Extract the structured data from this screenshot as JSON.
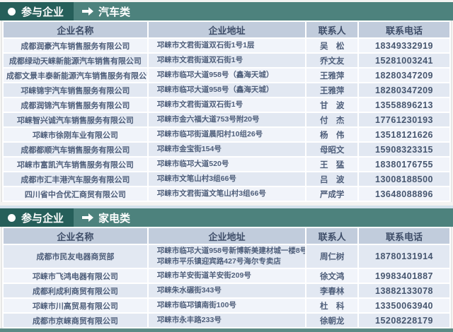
{
  "page": {
    "accent_dark_teal": "#265f5a",
    "accent_teal": "#4d827d",
    "header_row_bg": "#c1ccdc",
    "row_light": "#f1f4fa",
    "row_dark": "#e2e8f2",
    "text_color": "#4e5e7a",
    "icons": {
      "bullet": "circle-bullet-icon",
      "arrow": "right-arrow-icon"
    }
  },
  "sections": [
    {
      "badge_label": "参与企业",
      "category_label": "汽车类",
      "columns": [
        "企业名称",
        "企业地址",
        "联系人",
        "联系电话"
      ],
      "rows": [
        {
          "name": "成都润豪汽车销售服务有限公司",
          "address": "邛崃市文君街道双石街1号1层",
          "contact": "吴　松",
          "phone": "18349332919"
        },
        {
          "name": "成都绿动天崃新能源汽车销售有限公司",
          "address": "邛崃市文君街道双石街1号",
          "contact": "乔文友",
          "phone": "15281003241"
        },
        {
          "name": "成都文景丰泰新能源汽车销售服务有限公司",
          "address": "邛崃市临邛大道958号（鑫海天城）",
          "contact": "王雅萍",
          "phone": "18280347209"
        },
        {
          "name": "邛崃锦宇汽车销售服务有限公司",
          "address": "邛崃市临邛大道958号（鑫海天城）",
          "contact": "王雅萍",
          "phone": "18280347209"
        },
        {
          "name": "成都润锦汽车销售服务有限公司",
          "address": "邛崃市文君街道双石街1号",
          "contact": "甘　波",
          "phone": "13558896213"
        },
        {
          "name": "邛崃智兴诚汽车销售服务有限公司",
          "address": "邛崃市金六福大道753号附20号",
          "contact": "付　杰",
          "phone": "17761230193"
        },
        {
          "name": "邛崃市徐刚车业有限公司",
          "address": "邛崃市临邛街道晨阳村10组26号",
          "contact": "杨　伟",
          "phone": "13518121626"
        },
        {
          "name": "成都都顺汽车销售服务有限公司",
          "address": "邛崃市金宝街154号",
          "contact": "母昭文",
          "phone": "15908323315"
        },
        {
          "name": "邛崃市富凯汽车销售服务有限公司",
          "address": "邛崃市临邛大道520号",
          "contact": "王　猛",
          "phone": "18380176755"
        },
        {
          "name": "成都市汇丰港汽车服务有限公司",
          "address": "邛崃市文笔山村3组66号",
          "contact": "吕　波",
          "phone": "13008188500"
        },
        {
          "name": "四川省中合优汇商贸有限公司",
          "address": "邛崃市文君街道文笔山村3组66号",
          "contact": "严成学",
          "phone": "13648088896"
        }
      ]
    },
    {
      "badge_label": "参与企业",
      "category_label": "家电类",
      "columns": [
        "企业名称",
        "企业地址",
        "联系人",
        "联系电话"
      ],
      "rows": [
        {
          "name": "成都市民友电器商贸部",
          "address": "邛崃市临邛大道958号新博新美建材城一楼8号\n邛崃市平乐镇迎宾路427号海尔专卖店",
          "contact": "周仁树",
          "phone": "18780131914"
        },
        {
          "name": "邛崃市飞鸿电器有限公司",
          "address": "邛崃市羊安街道羊安街209号",
          "contact": "徐文鸿",
          "phone": "19983401887"
        },
        {
          "name": "成都利成利商贸有限公司",
          "address": "邛崃朱水碾街343号",
          "contact": "李春林",
          "phone": "13882133078"
        },
        {
          "name": "邛崃市川高贸易有限公司",
          "address": "邛崃市临邛镇南街100号",
          "contact": "杜　科",
          "phone": "13350063940"
        },
        {
          "name": "成都市京崃商贸有限公司",
          "address": "邛崃市永丰路233号",
          "contact": "徐朝龙",
          "phone": "15208228179"
        }
      ]
    }
  ]
}
